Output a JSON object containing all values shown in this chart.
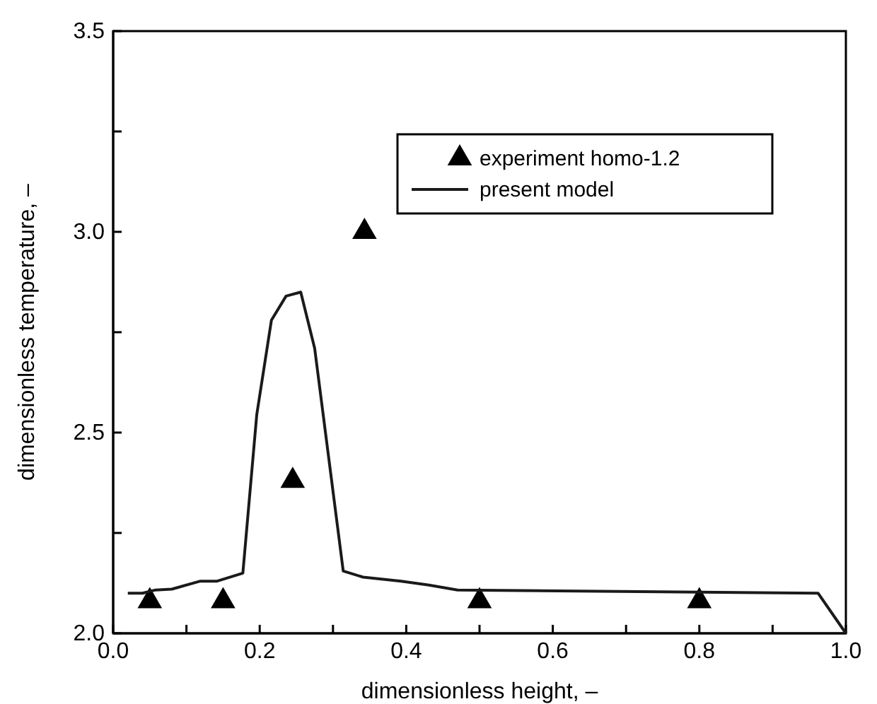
{
  "chart_data": {
    "type": "line",
    "xlabel": "dimensionless height, –",
    "ylabel": "dimensionless temperature, –",
    "xlim": [
      0,
      1
    ],
    "ylim": [
      2,
      3.5
    ],
    "xticks": [
      {
        "value": 0,
        "label": "0.0"
      },
      {
        "value": 0.1,
        "label": null
      },
      {
        "value": 0.2,
        "label": "0.2"
      },
      {
        "value": 0.3,
        "label": null
      },
      {
        "value": 0.4,
        "label": "0.4"
      },
      {
        "value": 0.5,
        "label": null
      },
      {
        "value": 0.6,
        "label": "0.6"
      },
      {
        "value": 0.7,
        "label": null
      },
      {
        "value": 0.8,
        "label": "0.8"
      },
      {
        "value": 0.9,
        "label": null
      },
      {
        "value": 1,
        "label": "1.0"
      }
    ],
    "yticks": [
      {
        "value": 2,
        "label": "2.0"
      },
      {
        "value": 2.25,
        "label": null
      },
      {
        "value": 2.5,
        "label": "2.5"
      },
      {
        "value": 2.75,
        "label": null
      },
      {
        "value": 3,
        "label": "3.0"
      },
      {
        "value": 3.25,
        "label": null
      },
      {
        "value": 3.5,
        "label": "3.5"
      }
    ],
    "legend": "top right",
    "grid": false,
    "series": [
      {
        "name": "experiment homo-1.2",
        "type": "scatter",
        "marker": "triangle",
        "color": "#000000",
        "x": [
          0.05,
          0.15,
          0.245,
          0.343,
          0.5,
          0.8
        ],
        "values": [
          2.08,
          2.08,
          2.38,
          3.0,
          2.08,
          2.08
        ]
      },
      {
        "name": "present model",
        "marker": "none",
        "line_style": "solid",
        "color": "#1a1a1a",
        "x": [
          0.02,
          0.04,
          0.058,
          0.08,
          0.119,
          0.142,
          0.177,
          0.196,
          0.216,
          0.236,
          0.256,
          0.275,
          0.314,
          0.341,
          0.393,
          0.431,
          0.47,
          0.962,
          1.0
        ],
        "values": [
          2.1,
          2.1,
          2.108,
          2.11,
          2.13,
          2.13,
          2.15,
          2.545,
          2.78,
          2.84,
          2.85,
          2.71,
          2.155,
          2.14,
          2.13,
          2.12,
          2.108,
          2.1,
          2.0
        ]
      }
    ]
  }
}
